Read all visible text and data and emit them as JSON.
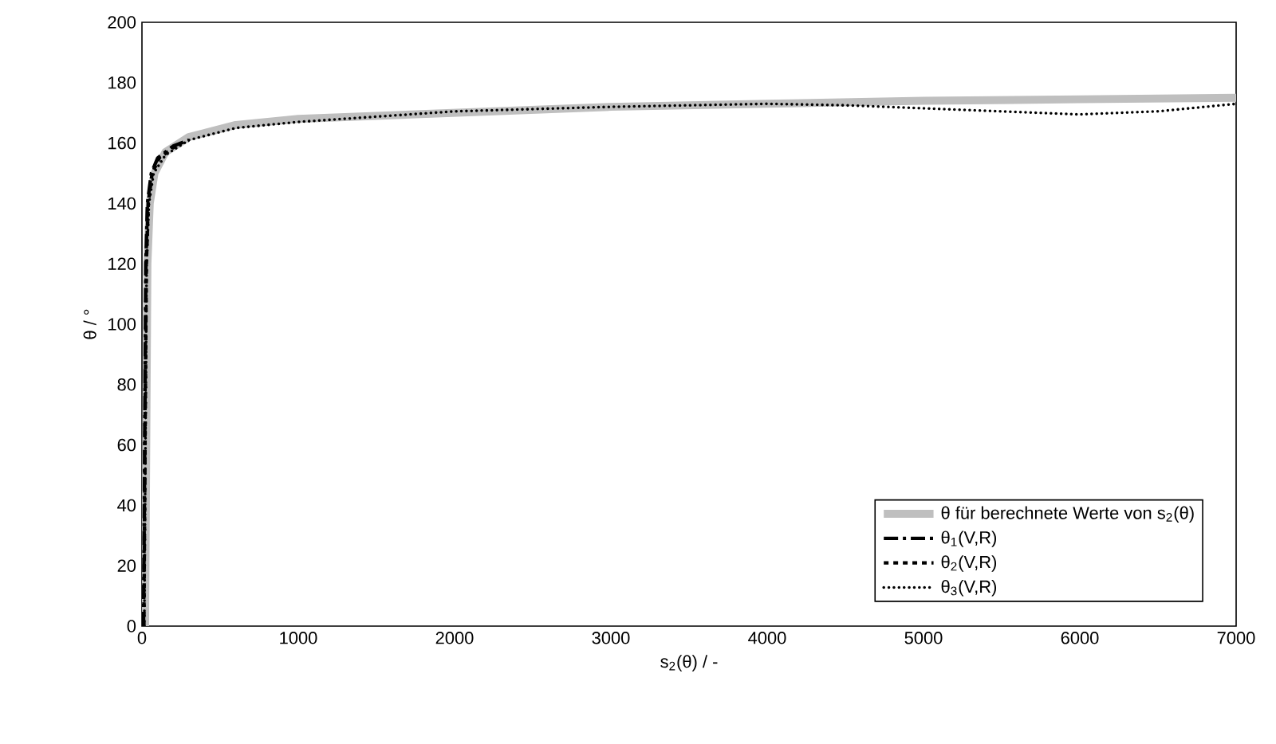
{
  "chart_data": {
    "type": "line",
    "xlabel": "s$_{2}$(θ)  /  -",
    "ylabel": "θ  /  °",
    "xlim": [
      0,
      7000
    ],
    "ylim": [
      0,
      200
    ],
    "xticks": [
      0,
      1000,
      2000,
      3000,
      4000,
      5000,
      6000,
      7000
    ],
    "yticks": [
      0,
      20,
      40,
      60,
      80,
      100,
      120,
      140,
      160,
      180,
      200
    ],
    "grid": false,
    "legend": "bottom right",
    "series": [
      {
        "name": "θ für berechnete Werte von s$_{2}$(θ)",
        "color": "#bfbfbf",
        "line_style": "solid",
        "x": [
          20,
          25,
          30,
          35,
          50,
          80,
          150,
          300,
          600,
          1000,
          2000,
          3000,
          4000,
          5000,
          6000,
          7000
        ],
        "values": [
          0,
          40,
          80,
          120,
          140,
          150,
          157,
          162,
          166,
          168,
          170,
          172,
          173,
          174,
          174.5,
          175
        ]
      },
      {
        "name": "θ$_{1}$(V,R)",
        "color": "#000000",
        "line_style": "dashdot",
        "x": [
          10,
          15,
          20,
          25,
          35,
          60,
          100,
          200,
          300
        ],
        "values": [
          0,
          40,
          80,
          120,
          140,
          150,
          155,
          159,
          161
        ]
      },
      {
        "name": "θ$_{2}$(V,R)",
        "color": "#000000",
        "line_style": "dashed",
        "x": [
          12,
          17,
          22,
          28,
          40,
          65,
          110,
          200,
          250
        ],
        "values": [
          0,
          40,
          80,
          120,
          140,
          150,
          155,
          158.5,
          160
        ]
      },
      {
        "name": "θ$_{3}$(V,R)",
        "color": "#000000",
        "line_style": "dotted",
        "x": [
          15,
          20,
          25,
          30,
          45,
          75,
          150,
          300,
          600,
          1000,
          2000,
          3000,
          4000,
          4500,
          5000,
          5500,
          6000,
          6500,
          7000
        ],
        "values": [
          0,
          40,
          80,
          120,
          140,
          150,
          156,
          161,
          165,
          167,
          170.5,
          172,
          173,
          172.5,
          171.5,
          170.5,
          169.5,
          170.5,
          173
        ]
      }
    ]
  }
}
